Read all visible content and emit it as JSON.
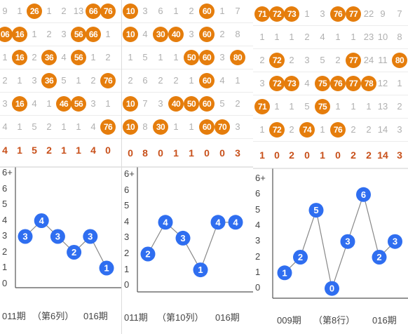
{
  "colors": {
    "ball": "#e57d0c",
    "node": "#2f6ef0",
    "sum": "#c8501a",
    "faint": "#b0b0b0"
  },
  "panels": [
    {
      "grid": [
        [
          "9",
          "1",
          "26",
          "1",
          "2",
          "13",
          "66",
          "76"
        ],
        [
          "06",
          "16",
          "1",
          "2",
          "3",
          "56",
          "66",
          "1"
        ],
        [
          "1",
          "16",
          "2",
          "36",
          "4",
          "56",
          "1",
          "2"
        ],
        [
          "2",
          "1",
          "3",
          "36",
          "5",
          "1",
          "2",
          "76"
        ],
        [
          "3",
          "16",
          "4",
          "1",
          "46",
          "56",
          "3",
          "1"
        ],
        [
          "4",
          "1",
          "5",
          "2",
          "1",
          "1",
          "4",
          "76"
        ]
      ],
      "balls": [
        [
          0,
          2
        ],
        [
          0,
          6
        ],
        [
          0,
          7
        ],
        [
          1,
          0
        ],
        [
          1,
          1
        ],
        [
          1,
          5
        ],
        [
          1,
          6
        ],
        [
          2,
          1
        ],
        [
          2,
          3
        ],
        [
          2,
          5
        ],
        [
          3,
          3
        ],
        [
          3,
          7
        ],
        [
          4,
          1
        ],
        [
          4,
          4
        ],
        [
          4,
          5
        ],
        [
          5,
          7
        ]
      ],
      "sums": [
        "4",
        "1",
        "5",
        "2",
        "1",
        "1",
        "4",
        "0"
      ],
      "yticks": [
        "6+",
        "6",
        "5",
        "4",
        "3",
        "2",
        "1",
        "0"
      ],
      "points": [
        3,
        4,
        3,
        2,
        3,
        1
      ],
      "footer": [
        "011期",
        "（第6列）",
        "016期"
      ]
    },
    {
      "grid": [
        [
          "10",
          "3",
          "6",
          "1",
          "2",
          "60",
          "1",
          "7"
        ],
        [
          "10",
          "4",
          "30",
          "40",
          "3",
          "60",
          "2",
          "8"
        ],
        [
          "1",
          "5",
          "1",
          "1",
          "50",
          "60",
          "3",
          "80"
        ],
        [
          "2",
          "6",
          "2",
          "2",
          "1",
          "60",
          "4",
          "1"
        ],
        [
          "10",
          "7",
          "3",
          "40",
          "50",
          "60",
          "5",
          "2"
        ],
        [
          "10",
          "8",
          "30",
          "1",
          "1",
          "60",
          "70",
          "3"
        ]
      ],
      "balls": [
        [
          0,
          0
        ],
        [
          0,
          5
        ],
        [
          1,
          0
        ],
        [
          1,
          2
        ],
        [
          1,
          3
        ],
        [
          1,
          5
        ],
        [
          2,
          4
        ],
        [
          2,
          5
        ],
        [
          2,
          7
        ],
        [
          3,
          5
        ],
        [
          4,
          0
        ],
        [
          4,
          3
        ],
        [
          4,
          4
        ],
        [
          4,
          5
        ],
        [
          5,
          0
        ],
        [
          5,
          2
        ],
        [
          5,
          5
        ],
        [
          5,
          6
        ]
      ],
      "sums": [
        "0",
        "8",
        "0",
        "1",
        "1",
        "0",
        "0",
        "3"
      ],
      "yticks": [
        "6+",
        "6",
        "5",
        "4",
        "3",
        "2",
        "1",
        "0"
      ],
      "points": [
        2,
        4,
        3,
        1,
        4,
        4
      ],
      "footer": [
        "011期",
        "（第10列）",
        "016期"
      ]
    },
    {
      "grid": [
        [
          "71",
          "72",
          "73",
          "1",
          "3",
          "76",
          "77",
          "22",
          "9",
          "7"
        ],
        [
          "1",
          "1",
          "1",
          "2",
          "4",
          "1",
          "1",
          "23",
          "10",
          "8"
        ],
        [
          "2",
          "72",
          "2",
          "3",
          "5",
          "2",
          "77",
          "24",
          "11",
          "80"
        ],
        [
          "3",
          "72",
          "73",
          "4",
          "75",
          "76",
          "77",
          "78",
          "12",
          "1"
        ],
        [
          "71",
          "1",
          "1",
          "5",
          "75",
          "1",
          "1",
          "1",
          "13",
          "2"
        ],
        [
          "1",
          "72",
          "2",
          "74",
          "1",
          "76",
          "2",
          "2",
          "14",
          "3"
        ]
      ],
      "balls": [
        [
          0,
          0
        ],
        [
          0,
          1
        ],
        [
          0,
          2
        ],
        [
          0,
          5
        ],
        [
          0,
          6
        ],
        [
          2,
          1
        ],
        [
          2,
          6
        ],
        [
          2,
          9
        ],
        [
          3,
          1
        ],
        [
          3,
          2
        ],
        [
          3,
          4
        ],
        [
          3,
          5
        ],
        [
          3,
          6
        ],
        [
          3,
          7
        ],
        [
          4,
          0
        ],
        [
          4,
          4
        ],
        [
          5,
          1
        ],
        [
          5,
          3
        ],
        [
          5,
          5
        ]
      ],
      "sums": [
        "1",
        "0",
        "2",
        "0",
        "1",
        "0",
        "2",
        "2",
        "14",
        "3"
      ],
      "yticks": [
        "6+",
        "6",
        "5",
        "4",
        "3",
        "2",
        "1",
        "0"
      ],
      "points": [
        1,
        2,
        5,
        0,
        3,
        6,
        2,
        3
      ],
      "footer": [
        "009期",
        "（第8行）",
        "016期"
      ]
    }
  ]
}
